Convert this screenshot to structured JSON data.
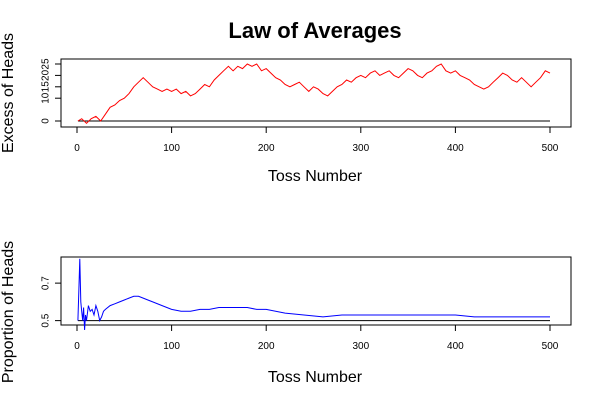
{
  "title": "Law of Averages",
  "chart_data": [
    {
      "type": "line",
      "title": "Law of Averages",
      "xlabel": "Toss Number",
      "ylabel": "Excess of Heads",
      "xlim": [
        0,
        500
      ],
      "ylim": [
        0,
        25
      ],
      "xticks": [
        0,
        100,
        200,
        300,
        400,
        500
      ],
      "yticks": [
        0,
        10,
        15,
        20,
        25
      ],
      "reference_line": 0,
      "series": [
        {
          "color": "#ff0000",
          "x": [
            1,
            5,
            10,
            15,
            20,
            25,
            30,
            35,
            40,
            45,
            50,
            55,
            60,
            65,
            70,
            75,
            80,
            85,
            90,
            95,
            100,
            105,
            110,
            115,
            120,
            125,
            130,
            135,
            140,
            145,
            150,
            155,
            160,
            165,
            170,
            175,
            180,
            185,
            190,
            195,
            200,
            205,
            210,
            215,
            220,
            225,
            230,
            235,
            240,
            245,
            250,
            255,
            260,
            265,
            270,
            275,
            280,
            285,
            290,
            295,
            300,
            305,
            310,
            315,
            320,
            325,
            330,
            335,
            340,
            345,
            350,
            355,
            360,
            365,
            370,
            375,
            380,
            385,
            390,
            395,
            400,
            405,
            410,
            415,
            420,
            425,
            430,
            435,
            440,
            445,
            450,
            455,
            460,
            465,
            470,
            475,
            480,
            485,
            490,
            495,
            500
          ],
          "y": [
            0,
            1,
            -1,
            1,
            2,
            0,
            3,
            6,
            7,
            9,
            10,
            12,
            15,
            17,
            19,
            17,
            15,
            14,
            13,
            14,
            13,
            14,
            12,
            13,
            11,
            12,
            14,
            16,
            15,
            18,
            20,
            22,
            24,
            22,
            24,
            23,
            25,
            24,
            25,
            22,
            23,
            21,
            19,
            18,
            16,
            15,
            16,
            17,
            15,
            13,
            15,
            14,
            12,
            11,
            13,
            15,
            16,
            18,
            17,
            19,
            20,
            19,
            21,
            22,
            20,
            21,
            22,
            20,
            19,
            21,
            23,
            22,
            20,
            19,
            21,
            22,
            24,
            25,
            22,
            21,
            22,
            20,
            19,
            18,
            16,
            15,
            14,
            15,
            17,
            19,
            21,
            20,
            18,
            17,
            19,
            17,
            15,
            17,
            19,
            22,
            21
          ]
        }
      ]
    },
    {
      "type": "line",
      "title": "",
      "xlabel": "Toss Number",
      "ylabel": "Proportion of Heads",
      "xlim": [
        0,
        500
      ],
      "ylim": [
        0.45,
        0.85
      ],
      "xticks": [
        0,
        100,
        200,
        300,
        400,
        500
      ],
      "yticks": [
        0.5,
        0.7
      ],
      "reference_line": 0.5,
      "series": [
        {
          "color": "#0000ff",
          "x": [
            1,
            2,
            3,
            4,
            5,
            6,
            7,
            8,
            9,
            10,
            12,
            14,
            16,
            18,
            20,
            22,
            24,
            26,
            28,
            30,
            35,
            40,
            45,
            50,
            55,
            60,
            65,
            70,
            75,
            80,
            90,
            100,
            110,
            120,
            130,
            140,
            150,
            160,
            170,
            180,
            190,
            200,
            220,
            240,
            260,
            280,
            300,
            320,
            340,
            360,
            380,
            400,
            420,
            440,
            460,
            480,
            500
          ],
          "y": [
            0.5,
            0.67,
            0.83,
            0.6,
            0.55,
            0.5,
            0.57,
            0.45,
            0.53,
            0.5,
            0.58,
            0.55,
            0.56,
            0.53,
            0.58,
            0.55,
            0.5,
            0.52,
            0.55,
            0.56,
            0.58,
            0.59,
            0.6,
            0.61,
            0.62,
            0.63,
            0.63,
            0.62,
            0.61,
            0.6,
            0.58,
            0.56,
            0.55,
            0.55,
            0.56,
            0.56,
            0.57,
            0.57,
            0.57,
            0.57,
            0.56,
            0.56,
            0.54,
            0.53,
            0.52,
            0.53,
            0.53,
            0.53,
            0.53,
            0.53,
            0.53,
            0.53,
            0.52,
            0.52,
            0.52,
            0.52,
            0.52
          ]
        }
      ]
    }
  ]
}
